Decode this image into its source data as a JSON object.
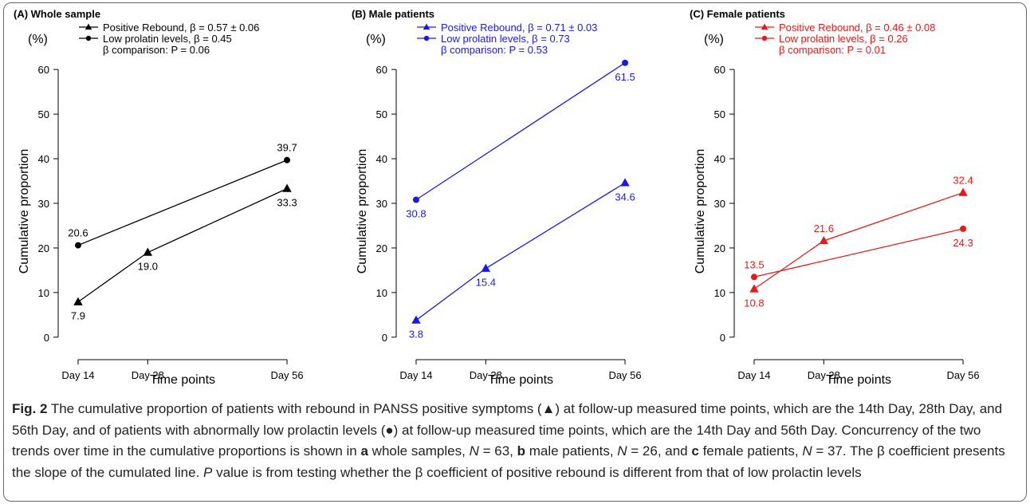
{
  "chart_data": [
    {
      "type": "line",
      "title": "(A) Whole sample",
      "color": "#000000",
      "y_unit": "(%)",
      "ylabel": "Cumulative proportion",
      "xlabel": "Time points",
      "x_categories": [
        "Day 14",
        "Day 28",
        "Day 56"
      ],
      "yticks": [
        0,
        10,
        20,
        30,
        40,
        50,
        60
      ],
      "ylim": [
        -2,
        67
      ],
      "xlim": [
        10,
        60
      ],
      "legend_position": "top-left",
      "legend": [
        "Positive Rebound, β = 0.57 ± 0.06",
        "Low prolatin levels, β = 0.45",
        "β comparison: P = 0.06"
      ],
      "series": [
        {
          "name": "Positive Rebound",
          "marker": "triangle",
          "x": [
            14,
            28,
            56
          ],
          "y": [
            7.9,
            19.0,
            33.3
          ],
          "labels": [
            "7.9",
            "19.0",
            "33.3"
          ],
          "label_pos": [
            "below",
            "below",
            "below"
          ]
        },
        {
          "name": "Low prolatin levels",
          "marker": "circle",
          "x": [
            14,
            56
          ],
          "y": [
            20.6,
            39.7
          ],
          "labels": [
            "20.6",
            "39.7"
          ],
          "label_pos": [
            "above",
            "above"
          ]
        }
      ]
    },
    {
      "type": "line",
      "title": "(B) Male patients",
      "color": "#1a1ae6",
      "y_unit": "(%)",
      "ylabel": "Cumulative proportion",
      "xlabel": "Time points",
      "x_categories": [
        "Day 14",
        "Day 28",
        "Day 56"
      ],
      "yticks": [
        0,
        10,
        20,
        30,
        40,
        50,
        60
      ],
      "ylim": [
        -2,
        67
      ],
      "xlim": [
        10,
        60
      ],
      "legend_position": "top-left",
      "legend": [
        "Positive Rebound, β = 0.71 ± 0.03",
        "Low prolatin levels, β = 0.73",
        "β comparison: P = 0.53"
      ],
      "series": [
        {
          "name": "Positive Rebound",
          "marker": "triangle",
          "x": [
            14,
            28,
            56
          ],
          "y": [
            3.8,
            15.4,
            34.6
          ],
          "labels": [
            "3.8",
            "15.4",
            "34.6"
          ],
          "label_pos": [
            "below",
            "below",
            "below"
          ]
        },
        {
          "name": "Low prolatin levels",
          "marker": "circle",
          "x": [
            14,
            56
          ],
          "y": [
            30.8,
            61.5
          ],
          "labels": [
            "30.8",
            "61.5"
          ],
          "label_pos": [
            "below",
            "below"
          ]
        }
      ]
    },
    {
      "type": "line",
      "title": "(C) Female patients",
      "color": "#e61a1a",
      "y_unit": "(%)",
      "ylabel": "Cumulative proportion",
      "xlabel": "Time points",
      "x_categories": [
        "Day 14",
        "Day 28",
        "Day 56"
      ],
      "yticks": [
        0,
        10,
        20,
        30,
        40,
        50,
        60
      ],
      "ylim": [
        -2,
        67
      ],
      "xlim": [
        10,
        60
      ],
      "legend_position": "top-left",
      "legend": [
        "Positive Rebound, β = 0.46 ± 0.08",
        "Low prolatin levels, β = 0.26",
        "β comparison: P = 0.01"
      ],
      "series": [
        {
          "name": "Positive Rebound",
          "marker": "triangle",
          "x": [
            14,
            28,
            56
          ],
          "y": [
            10.8,
            21.6,
            32.4
          ],
          "labels": [
            "10.8",
            "21.6",
            "32.4"
          ],
          "label_pos": [
            "below",
            "above",
            "above"
          ]
        },
        {
          "name": "Low prolatin levels",
          "marker": "circle",
          "x": [
            14,
            56
          ],
          "y": [
            13.5,
            24.3
          ],
          "labels": [
            "13.5",
            "24.3"
          ],
          "label_pos": [
            "above",
            "below"
          ]
        }
      ]
    }
  ],
  "caption": {
    "fig_label": "Fig. 2",
    "part1": " The cumulative proportion of patients with rebound in PANSS positive symptoms (▲) at follow-up measured time points, which are the 14th Day, 28th Day, and 56th Day, and of patients with abnormally low prolactin levels (●) at follow-up measured time points, which are the 14th Day and 56th Day. Concurrency of the two trends over time in the cumulative proportions is shown in ",
    "a": "a",
    "part2": " whole samples, ",
    "n_a": "N",
    "part3": " = 63, ",
    "b": "b",
    "part4": " male patients, ",
    "n_b": "N",
    "part5": " = 26, and ",
    "c": "c",
    "part6": " female patients, ",
    "n_c": "N",
    "part7": " = 37. The β coefficient presents the slope of the cumulated line. ",
    "p": "P",
    "part8": " value is from testing whether the β coefficient of positive rebound is different from that of low prolactin levels"
  }
}
